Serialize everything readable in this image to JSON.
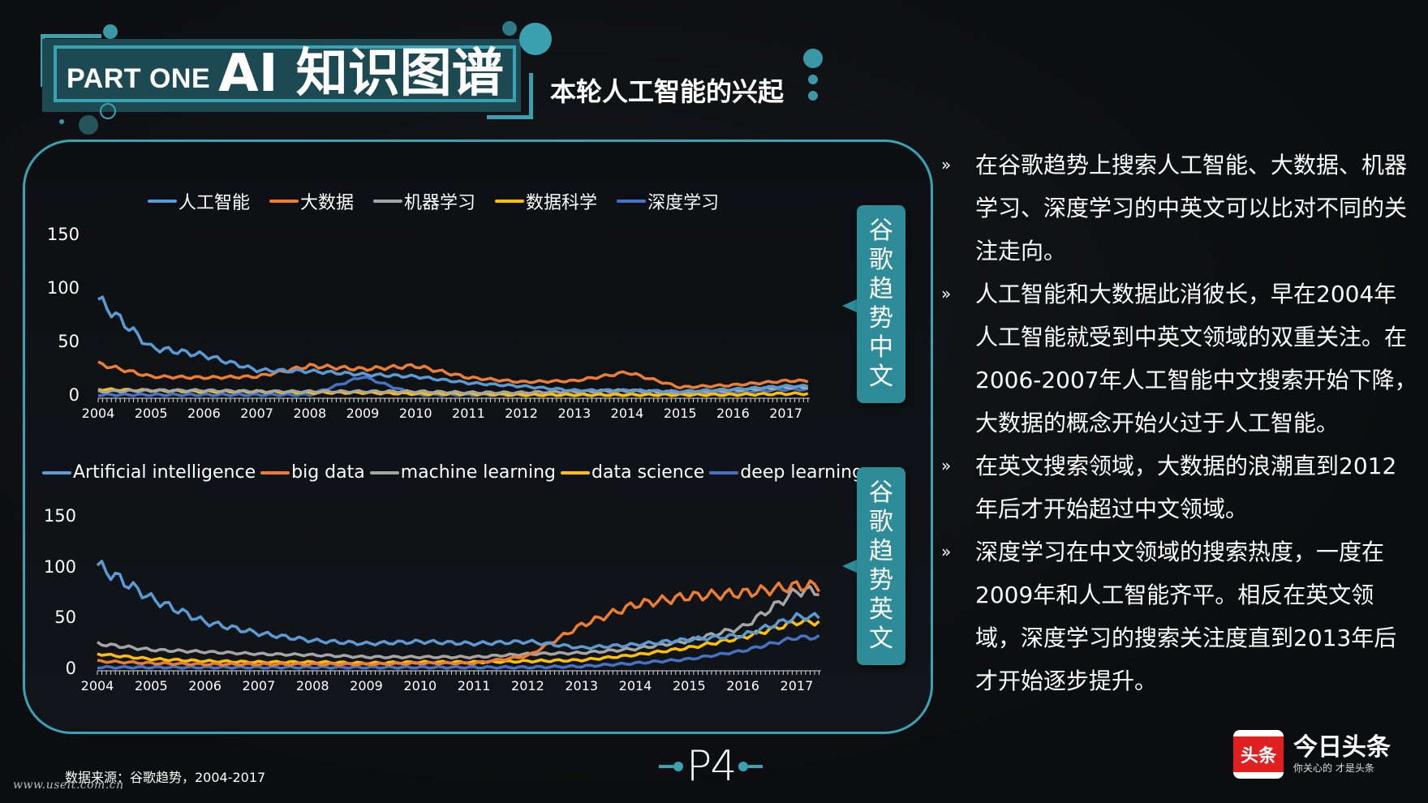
{
  "header": {
    "part_label": "PART ONE",
    "title": "AI 知识图谱",
    "subtitle": "本轮人工智能的兴起"
  },
  "colors": {
    "accent": "#3aa3b3",
    "tab_bg": "#2e8b98",
    "banner_bg": "#1d4a52",
    "series_ai": "#5b9bd5",
    "series_bigdata": "#ed7d31",
    "series_ml": "#a5a5a5",
    "series_ds": "#ffc000",
    "series_dl": "#4472c4"
  },
  "tabs": {
    "cn": "谷歌趋势中文",
    "en": "谷歌趋势英文"
  },
  "chart_data": [
    {
      "type": "line",
      "title": "谷歌趋势中文",
      "legend_position": "top",
      "legend": [
        "人工智能",
        "大数据",
        "机器学习",
        "数据科学",
        "深度学习"
      ],
      "xlabel": "",
      "ylabel": "",
      "ylim": [
        0,
        150
      ],
      "yticks": [
        "150",
        "100",
        "50",
        "0"
      ],
      "x": [
        "2004",
        "2005",
        "2006",
        "2007",
        "2008",
        "2009",
        "2010",
        "2011",
        "2012",
        "2013",
        "2014",
        "2015",
        "2016",
        "2017"
      ],
      "series": [
        {
          "name": "人工智能",
          "values": [
            90,
            45,
            38,
            24,
            23,
            20,
            18,
            12,
            9,
            5,
            5,
            4,
            6,
            9
          ]
        },
        {
          "name": "大数据",
          "values": [
            30,
            18,
            17,
            18,
            28,
            25,
            28,
            17,
            13,
            14,
            22,
            8,
            10,
            14
          ]
        },
        {
          "name": "机器学习",
          "values": [
            4,
            5,
            5,
            4,
            4,
            4,
            4,
            3,
            3,
            4,
            5,
            3,
            5,
            8
          ]
        },
        {
          "name": "数据科学",
          "values": [
            6,
            5,
            4,
            4,
            3,
            3,
            2,
            2,
            1,
            1,
            1,
            1,
            1,
            2
          ]
        },
        {
          "name": "深度学习",
          "values": [
            1,
            1,
            1,
            1,
            1,
            18,
            1,
            1,
            1,
            1,
            1,
            2,
            3,
            6
          ]
        }
      ]
    },
    {
      "type": "line",
      "title": "谷歌趋势英文",
      "legend_position": "top",
      "legend": [
        "Artificial intelligence",
        "big data",
        "machine learning",
        "data science",
        "deep learning"
      ],
      "xlabel": "",
      "ylabel": "",
      "ylim": [
        0,
        150
      ],
      "yticks": [
        "150",
        "100",
        "50",
        "0"
      ],
      "x": [
        "2004",
        "2005",
        "2006",
        "2007",
        "2008",
        "2009",
        "2010",
        "2011",
        "2012",
        "2013",
        "2014",
        "2015",
        "2016",
        "2017"
      ],
      "series": [
        {
          "name": "Artificial intelligence",
          "values": [
            100,
            68,
            45,
            34,
            27,
            24,
            26,
            24,
            26,
            20,
            23,
            28,
            32,
            50
          ]
        },
        {
          "name": "big data",
          "values": [
            7,
            5,
            4,
            4,
            4,
            4,
            5,
            5,
            12,
            42,
            62,
            70,
            73,
            80
          ]
        },
        {
          "name": "machine learning",
          "values": [
            24,
            18,
            16,
            14,
            13,
            11,
            11,
            11,
            14,
            15,
            19,
            27,
            40,
            75
          ]
        },
        {
          "name": "data science",
          "values": [
            14,
            9,
            7,
            6,
            6,
            5,
            6,
            6,
            7,
            8,
            13,
            20,
            30,
            45
          ]
        },
        {
          "name": "deep learning",
          "values": [
            1,
            1,
            1,
            1,
            1,
            1,
            1,
            1,
            1,
            2,
            5,
            9,
            17,
            30
          ]
        }
      ]
    }
  ],
  "bullets": [
    "在谷歌趋势上搜索人工智能、大数据、机器学习、深度学习的中英文可以比对不同的关注走向。",
    "人工智能和大数据此消彼长，早在2004年人工智能就受到中英文领域的双重关注。在2006-2007年人工智能中文搜索开始下降，大数据的概念开始火过于人工智能。",
    "在英文搜索领域，大数据的浪潮直到2012年后才开始超过中文领域。",
    "深度学习在中文领域的搜索热度，一度在2009年和人工智能齐平。相反在英文领域，深度学习的搜索关注度直到2013年后才开始逐步提升。"
  ],
  "bullet_mark": "»",
  "footer": {
    "source": "数据来源：谷歌趋势，2004-2017",
    "watermark": "www.useit.com.cn",
    "page": "P4"
  },
  "logo": {
    "icon_text": "头条",
    "name": "今日头条",
    "slogan": "你关心的 才是头条"
  }
}
